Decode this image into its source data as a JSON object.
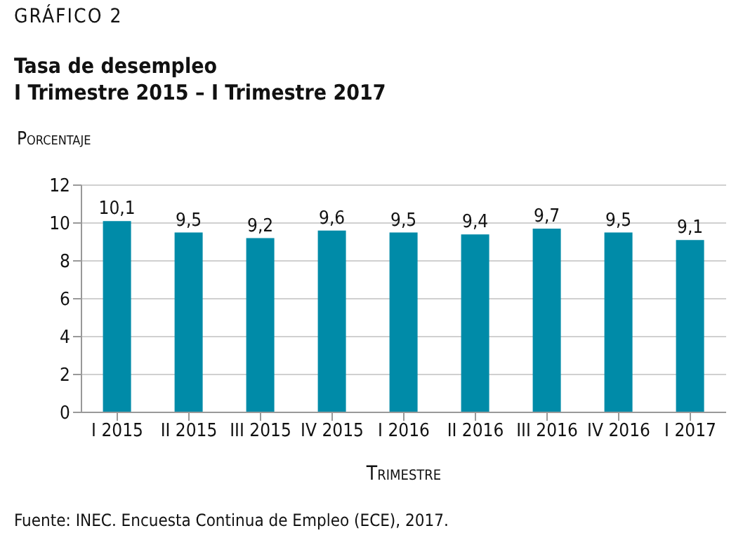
{
  "chart_data": {
    "type": "bar",
    "title": "Tasa de desempleo",
    "subtitle": "I Trimestre 2015 – I Trimestre 2017",
    "ylabel": "Porcentaje",
    "xlabel": "Trimestre",
    "annotations": [
      "GRÁFICO 2",
      "Fuente: INEC. Encuesta Continua de Empleo (ECE), 2017."
    ],
    "categories": [
      "I 2015",
      "II 2015",
      "III 2015",
      "IV 2015",
      "I 2016",
      "II 2016",
      "III 2016",
      "IV 2016",
      "I 2017"
    ],
    "values": [
      10.1,
      9.5,
      9.2,
      9.6,
      9.5,
      9.4,
      9.7,
      9.5,
      9.1
    ],
    "value_labels": [
      "10,1",
      "9,5",
      "9,2",
      "9,6",
      "9,5",
      "9,4",
      "9,7",
      "9,5",
      "9,1"
    ],
    "color": "#008ba8",
    "ylim": [
      0,
      12
    ],
    "yticks": [
      0,
      2,
      4,
      6,
      8,
      10,
      12
    ],
    "grid": "y",
    "legend": false
  }
}
